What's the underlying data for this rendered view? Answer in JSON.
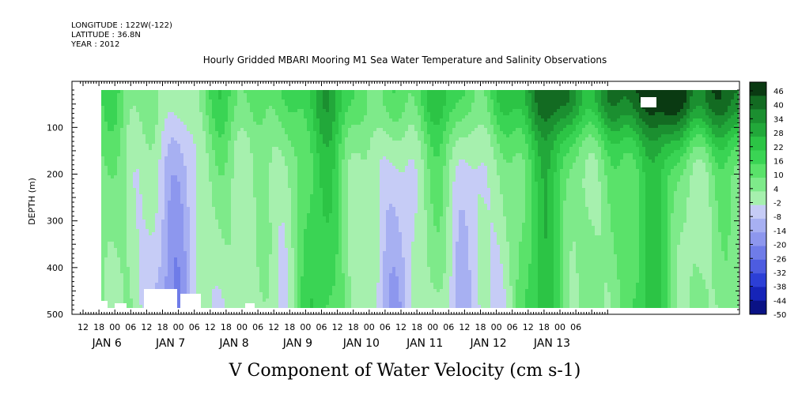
{
  "header": {
    "longitude": "LONGITUDE : 122W(-122)",
    "latitude": "LATITUDE : 36.8N",
    "year": "YEAR : 2012"
  },
  "chart_data": {
    "type": "heatmap",
    "title": "Hourly Gridded MBARI Mooring M1 Sea Water Temperature and Salinity Observations",
    "xlabel": "V Component of Water Velocity (cm s-1)",
    "ylabel": "DEPTH (m)",
    "y_ticks": [
      100,
      200,
      300,
      400,
      500
    ],
    "ylim": [
      20,
      500
    ],
    "y_inverted": true,
    "x_hour_ticks": [
      "12",
      "18",
      "00",
      "06",
      "12",
      "18",
      "00",
      "06",
      "12",
      "18",
      "00",
      "06",
      "12",
      "18",
      "00",
      "06",
      "12",
      "18",
      "00",
      "06",
      "12",
      "18",
      "00",
      "06",
      "12",
      "18",
      "00",
      "06",
      "12",
      "18",
      "00",
      "06"
    ],
    "x_day_labels": [
      "JAN 6",
      "JAN 7",
      "JAN 8",
      "JAN 9",
      "JAN 10",
      "JAN 11",
      "JAN 12",
      "JAN 13"
    ],
    "colorbar": {
      "levels": [
        46,
        40,
        34,
        28,
        22,
        16,
        10,
        4,
        -2,
        -8,
        -14,
        -20,
        -26,
        -32,
        -38,
        -44,
        -50
      ],
      "labeled": [
        "46",
        "40",
        "34",
        "28",
        "22",
        "16",
        "10",
        "4",
        "-2",
        "-8",
        "-14",
        "-20",
        "-26",
        "-32",
        "-38",
        "-44",
        "-50"
      ],
      "colors": [
        "#0a3a12",
        "#136b22",
        "#1b8f30",
        "#22a83a",
        "#2cc445",
        "#3ad454",
        "#5ae26a",
        "#7eea8a",
        "#a6f0ae",
        "#c6ccf6",
        "#a7b0f2",
        "#8d97ee",
        "#6f7ce8",
        "#4d5ce0",
        "#2c3fd6",
        "#1624b8",
        "#0a1285"
      ]
    },
    "time_start": "JAN 6 15:00",
    "time_end": "JAN 13 09:00"
  }
}
